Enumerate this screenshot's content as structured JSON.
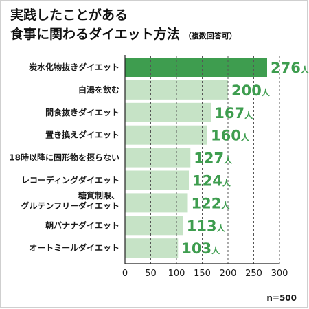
{
  "chart_data": {
    "type": "bar",
    "orientation": "horizontal",
    "title_line1": "実践したことがある",
    "title_line2": "食事に関わるダイエット方法",
    "title_note": "（複数回答可）",
    "categories": [
      [
        "炭水化物抜きダイエット"
      ],
      [
        "白湯を飲む"
      ],
      [
        "間食抜きダイエット"
      ],
      [
        "置き換えダイエット"
      ],
      [
        "18時以降に固形物を摂らない"
      ],
      [
        "レコーディングダイエット"
      ],
      [
        "糖質制限、",
        "グルテンフリーダイエット"
      ],
      [
        "朝バナナダイエット"
      ],
      [
        "オートミールダイエット"
      ]
    ],
    "values": [
      276,
      200,
      167,
      160,
      127,
      124,
      122,
      113,
      103
    ],
    "unit": "人",
    "xlim": [
      0,
      300
    ],
    "xticks": [
      0,
      50,
      100,
      150,
      200,
      250,
      300
    ],
    "grid": "vertical dashed",
    "sample_size": "n=500",
    "colors": {
      "highlight_bar": "#3e9d4f",
      "bar": "#c6e3c6",
      "value_text": "#3e9d4f"
    }
  }
}
